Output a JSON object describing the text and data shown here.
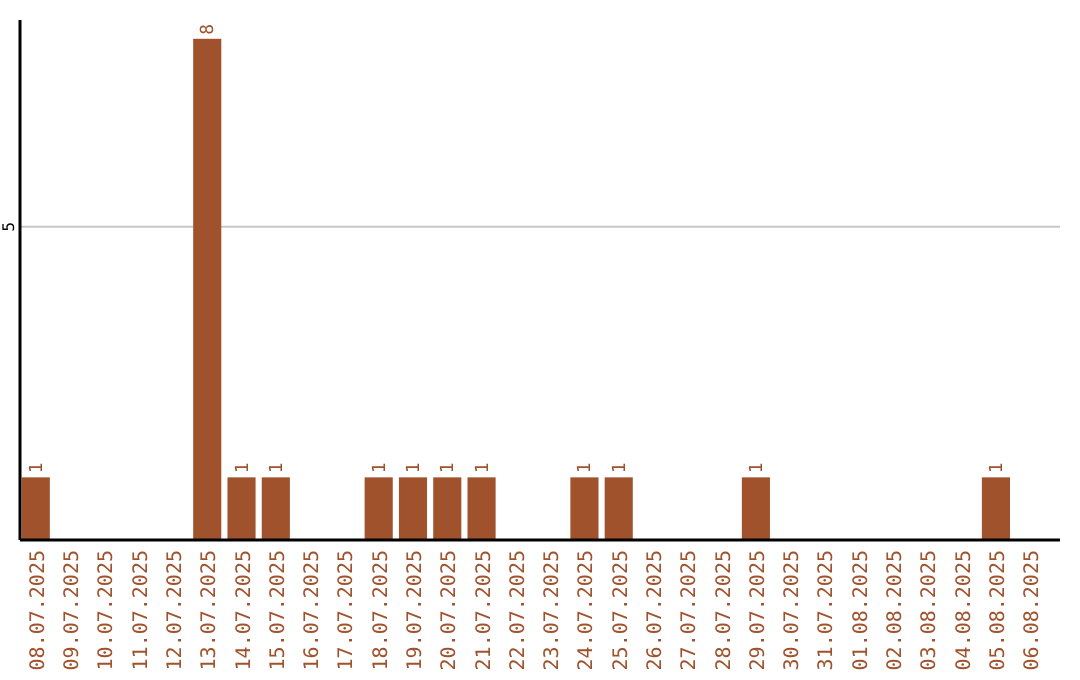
{
  "chart_data": {
    "type": "bar",
    "categories": [
      "08.07.2025",
      "09.07.2025",
      "10.07.2025",
      "11.07.2025",
      "12.07.2025",
      "13.07.2025",
      "14.07.2025",
      "15.07.2025",
      "16.07.2025",
      "17.07.2025",
      "18.07.2025",
      "19.07.2025",
      "20.07.2025",
      "21.07.2025",
      "22.07.2025",
      "23.07.2025",
      "24.07.2025",
      "25.07.2025",
      "26.07.2025",
      "27.07.2025",
      "28.07.2025",
      "29.07.2025",
      "30.07.2025",
      "31.07.2025",
      "01.08.2025",
      "02.08.2025",
      "03.08.2025",
      "04.08.2025",
      "05.08.2025",
      "06.08.2025"
    ],
    "values": [
      1,
      0,
      0,
      0,
      0,
      8,
      1,
      1,
      0,
      0,
      1,
      1,
      1,
      1,
      0,
      0,
      1,
      1,
      0,
      0,
      0,
      1,
      0,
      0,
      0,
      0,
      0,
      0,
      1,
      0
    ],
    "value_labels": [
      "1",
      null,
      null,
      null,
      null,
      "8",
      "1",
      "1",
      null,
      null,
      "1",
      "1",
      "1",
      "1",
      null,
      null,
      "1",
      "1",
      null,
      null,
      null,
      "1",
      null,
      null,
      null,
      null,
      null,
      null,
      "1",
      null
    ],
    "color": "#a0522d",
    "ylim": [
      0,
      8.3
    ],
    "yticks": [
      5
    ],
    "grid": "y"
  }
}
